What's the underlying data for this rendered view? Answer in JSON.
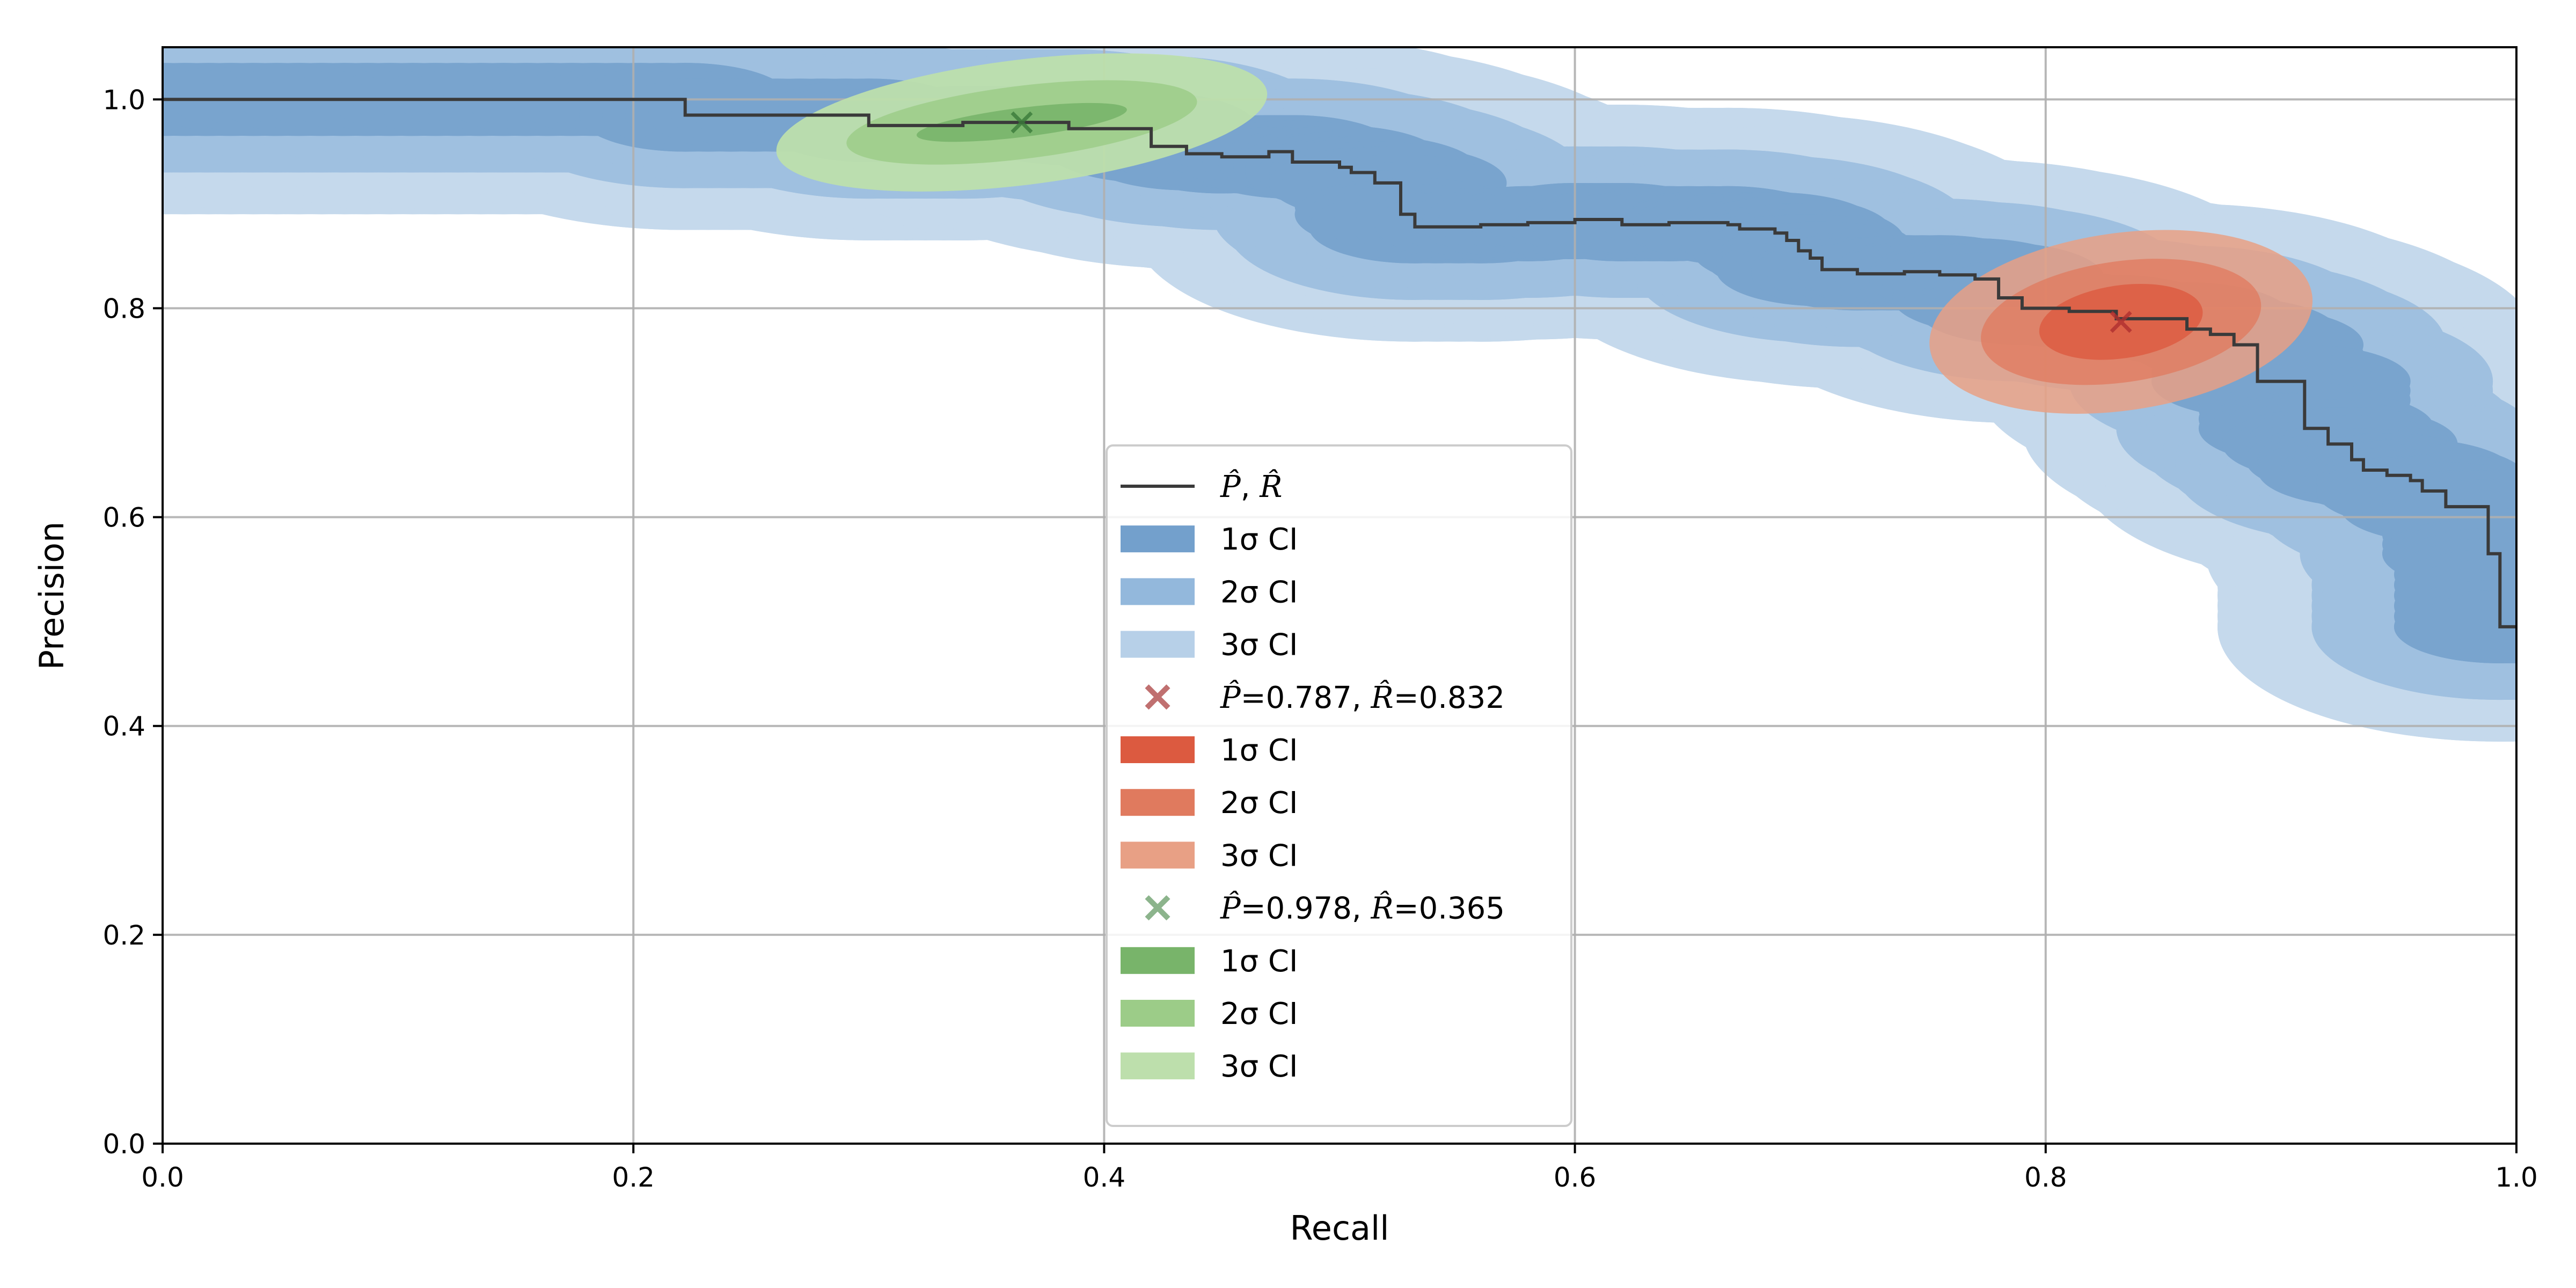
{
  "chart_data": {
    "type": "line",
    "xlabel": "Recall",
    "ylabel": "Precision",
    "xlim": [
      0.0,
      1.0
    ],
    "ylim": [
      0.0,
      1.05
    ],
    "x_ticks": [
      "0.0",
      "0.2",
      "0.4",
      "0.6",
      "0.8",
      "1.0"
    ],
    "y_ticks": [
      "0.0",
      "0.2",
      "0.4",
      "0.6",
      "0.8",
      "1.0"
    ],
    "grid": true,
    "legend_position": "lower-center",
    "curve": {
      "name": "P̂, R̂",
      "color": "#3a3a3a",
      "points": [
        [
          0.0,
          1.0
        ],
        [
          0.222,
          1.0
        ],
        [
          0.222,
          0.985
        ],
        [
          0.3,
          0.985
        ],
        [
          0.3,
          0.975
        ],
        [
          0.34,
          0.975
        ],
        [
          0.34,
          0.978
        ],
        [
          0.385,
          0.978
        ],
        [
          0.385,
          0.972
        ],
        [
          0.42,
          0.972
        ],
        [
          0.42,
          0.955
        ],
        [
          0.435,
          0.955
        ],
        [
          0.435,
          0.948
        ],
        [
          0.45,
          0.948
        ],
        [
          0.45,
          0.945
        ],
        [
          0.47,
          0.945
        ],
        [
          0.47,
          0.95
        ],
        [
          0.48,
          0.95
        ],
        [
          0.48,
          0.94
        ],
        [
          0.5,
          0.94
        ],
        [
          0.5,
          0.935
        ],
        [
          0.505,
          0.935
        ],
        [
          0.505,
          0.93
        ],
        [
          0.515,
          0.93
        ],
        [
          0.515,
          0.92
        ],
        [
          0.526,
          0.92
        ],
        [
          0.526,
          0.89
        ],
        [
          0.532,
          0.89
        ],
        [
          0.532,
          0.878
        ],
        [
          0.56,
          0.878
        ],
        [
          0.56,
          0.88
        ],
        [
          0.58,
          0.88
        ],
        [
          0.58,
          0.882
        ],
        [
          0.6,
          0.882
        ],
        [
          0.6,
          0.885
        ],
        [
          0.62,
          0.885
        ],
        [
          0.62,
          0.88
        ],
        [
          0.64,
          0.88
        ],
        [
          0.64,
          0.882
        ],
        [
          0.665,
          0.882
        ],
        [
          0.665,
          0.88
        ],
        [
          0.67,
          0.88
        ],
        [
          0.67,
          0.876
        ],
        [
          0.685,
          0.876
        ],
        [
          0.685,
          0.872
        ],
        [
          0.69,
          0.872
        ],
        [
          0.69,
          0.865
        ],
        [
          0.695,
          0.865
        ],
        [
          0.695,
          0.855
        ],
        [
          0.7,
          0.855
        ],
        [
          0.7,
          0.848
        ],
        [
          0.705,
          0.848
        ],
        [
          0.705,
          0.837
        ],
        [
          0.72,
          0.837
        ],
        [
          0.72,
          0.833
        ],
        [
          0.74,
          0.833
        ],
        [
          0.74,
          0.835
        ],
        [
          0.755,
          0.835
        ],
        [
          0.755,
          0.832
        ],
        [
          0.77,
          0.832
        ],
        [
          0.77,
          0.828
        ],
        [
          0.78,
          0.828
        ],
        [
          0.78,
          0.81
        ],
        [
          0.79,
          0.81
        ],
        [
          0.79,
          0.8
        ],
        [
          0.81,
          0.8
        ],
        [
          0.81,
          0.797
        ],
        [
          0.83,
          0.797
        ],
        [
          0.83,
          0.79
        ],
        [
          0.86,
          0.79
        ],
        [
          0.86,
          0.78
        ],
        [
          0.87,
          0.78
        ],
        [
          0.87,
          0.775
        ],
        [
          0.88,
          0.775
        ],
        [
          0.88,
          0.765
        ],
        [
          0.89,
          0.765
        ],
        [
          0.89,
          0.73
        ],
        [
          0.91,
          0.73
        ],
        [
          0.91,
          0.685
        ],
        [
          0.92,
          0.685
        ],
        [
          0.92,
          0.67
        ],
        [
          0.93,
          0.67
        ],
        [
          0.93,
          0.655
        ],
        [
          0.935,
          0.655
        ],
        [
          0.935,
          0.645
        ],
        [
          0.945,
          0.645
        ],
        [
          0.945,
          0.64
        ],
        [
          0.955,
          0.64
        ],
        [
          0.955,
          0.635
        ],
        [
          0.96,
          0.635
        ],
        [
          0.96,
          0.625
        ],
        [
          0.97,
          0.625
        ],
        [
          0.97,
          0.61
        ],
        [
          0.988,
          0.61
        ],
        [
          0.988,
          0.565
        ],
        [
          0.993,
          0.565
        ],
        [
          0.993,
          0.495
        ],
        [
          1.0,
          0.495
        ]
      ]
    },
    "curve_bands": {
      "colors": [
        "#73a0cc",
        "#93b8dc",
        "#b7d0e8"
      ],
      "opacity": [
        0.85,
        0.75,
        0.8
      ],
      "halfwidth_x": [
        0.045,
        0.08,
        0.12
      ],
      "halfwidth_y": [
        0.035,
        0.07,
        0.11
      ],
      "labels": [
        "1σ CI",
        "2σ CI",
        "3σ CI"
      ]
    },
    "points": [
      {
        "precision": 0.787,
        "recall": 0.832,
        "marker_color": "#c07070",
        "point_color": "#b03030",
        "legend_label": "P̂=0.787, R̂=0.832",
        "legend_parts": [
          "P̂",
          "=0.787, ",
          "R̂",
          "=0.832"
        ],
        "ellipse_colors": [
          "#dc5a40",
          "#e07a5e",
          "#e8a085"
        ],
        "ellipse_opacity": [
          0.8,
          0.75,
          0.85
        ],
        "rx": [
          0.035,
          0.06,
          0.082
        ],
        "ry": [
          0.035,
          0.058,
          0.085
        ],
        "tilt_deg": -8,
        "labels": [
          "1σ CI",
          "2σ CI",
          "3σ CI"
        ]
      },
      {
        "precision": 0.978,
        "recall": 0.365,
        "marker_color": "#8cb48c",
        "point_color": "#3a7a3a",
        "legend_label": "P̂=0.978, R̂=0.365",
        "legend_parts": [
          "P̂",
          "=0.978, ",
          "R̂",
          "=0.365"
        ],
        "ellipse_colors": [
          "#78b46a",
          "#9ccc88",
          "#bddfac"
        ],
        "ellipse_opacity": [
          0.9,
          0.85,
          0.95
        ],
        "rx": [
          0.045,
          0.075,
          0.105
        ],
        "ry": [
          0.014,
          0.035,
          0.06
        ],
        "tilt_deg": -7,
        "labels": [
          "1σ CI",
          "2σ CI",
          "3σ CI"
        ]
      }
    ],
    "legend": {
      "curve_label_parts": [
        "P̂",
        ", ",
        "R̂"
      ]
    }
  }
}
